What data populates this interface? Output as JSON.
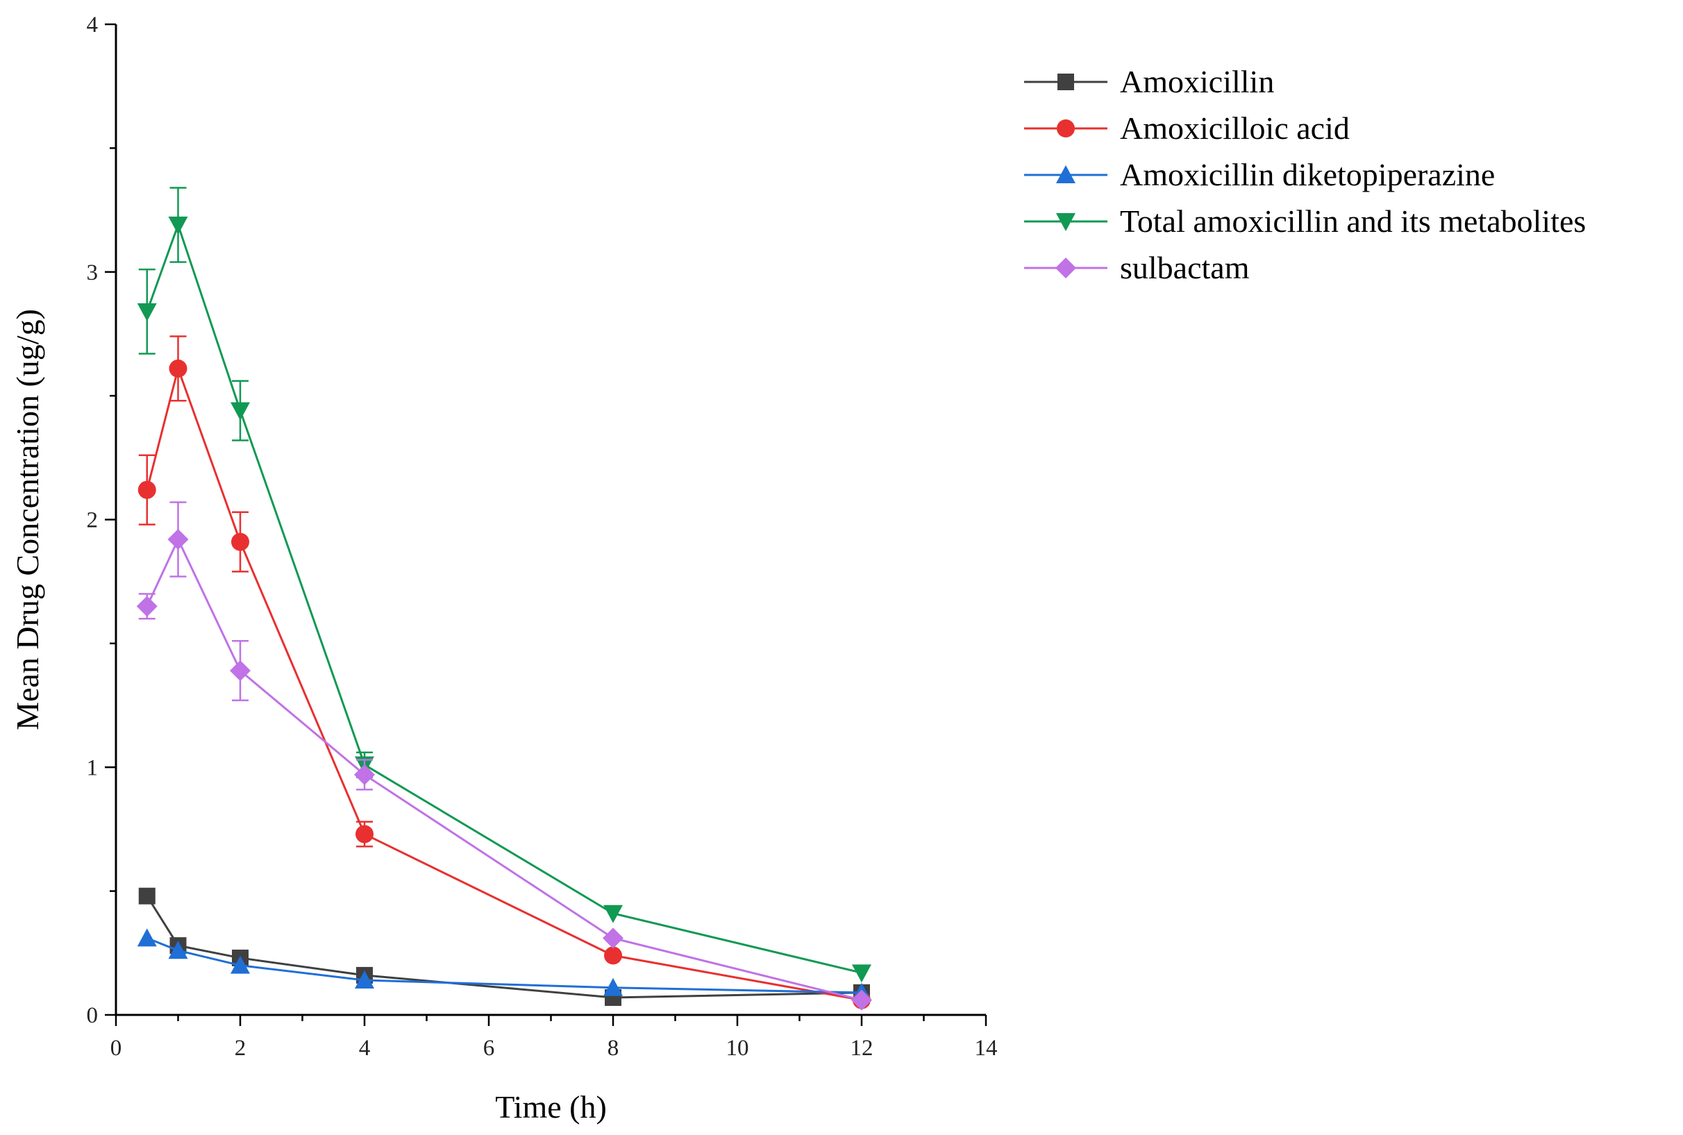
{
  "chart_data": {
    "type": "line",
    "title": "",
    "xlabel": "Time (h)",
    "ylabel": "Mean Drug Concentration (ug/g)",
    "xlim": [
      0,
      14
    ],
    "ylim": [
      0,
      4
    ],
    "x_ticks": [
      0,
      2,
      4,
      6,
      8,
      10,
      12,
      14
    ],
    "y_ticks": [
      0,
      1,
      2,
      3,
      4
    ],
    "grid": false,
    "legend_position": "top-right",
    "x": [
      0.5,
      1,
      2,
      4,
      8,
      12
    ],
    "series": [
      {
        "name": "Amoxicillin",
        "color": "#404040",
        "marker": "square",
        "values": [
          0.48,
          0.28,
          0.23,
          0.16,
          0.07,
          0.09
        ],
        "errors": [
          0,
          0,
          0,
          0,
          0,
          0
        ]
      },
      {
        "name": "Amoxicilloic acid",
        "color": "#e83030",
        "marker": "circle",
        "values": [
          2.12,
          2.61,
          1.91,
          0.73,
          0.24,
          0.06
        ],
        "errors": [
          0.14,
          0.13,
          0.12,
          0.05,
          0,
          0
        ]
      },
      {
        "name": "Amoxicillin diketopiperazine",
        "color": "#1f6fd6",
        "marker": "triangle-up",
        "values": [
          0.31,
          0.26,
          0.2,
          0.14,
          0.11,
          0.09
        ],
        "errors": [
          0,
          0,
          0,
          0,
          0,
          0
        ]
      },
      {
        "name": "Total amoxicillin and its metabolites",
        "color": "#119953",
        "marker": "triangle-down",
        "values": [
          2.84,
          3.19,
          2.44,
          1.01,
          0.41,
          0.17
        ],
        "errors": [
          0.17,
          0.15,
          0.12,
          0.05,
          0,
          0
        ]
      },
      {
        "name": "sulbactam",
        "color": "#c072e6",
        "marker": "diamond",
        "values": [
          1.65,
          1.92,
          1.39,
          0.97,
          0.31,
          0.06
        ],
        "errors": [
          0.05,
          0.15,
          0.12,
          0.06,
          0,
          0
        ]
      }
    ]
  }
}
